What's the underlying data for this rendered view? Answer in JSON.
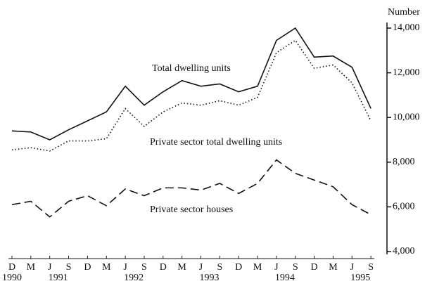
{
  "chart_data": {
    "type": "line",
    "y_axis_label": "Number",
    "categories": [
      "D",
      "M",
      "J",
      "S",
      "D",
      "M",
      "J",
      "S",
      "D",
      "M",
      "J",
      "S",
      "D",
      "M",
      "J",
      "S",
      "D",
      "M",
      "J",
      "S"
    ],
    "year_labels": [
      "1990",
      null,
      "1991",
      null,
      null,
      null,
      "1992",
      null,
      null,
      null,
      "1993",
      null,
      null,
      null,
      "1994",
      null,
      null,
      null,
      "1995",
      null
    ],
    "ylim": [
      4000,
      14000
    ],
    "yticks": [
      {
        "value": 4000,
        "label": "4,000"
      },
      {
        "value": 6000,
        "label": "6,000"
      },
      {
        "value": 8000,
        "label": "8,000"
      },
      {
        "value": 10000,
        "label": "10,000"
      },
      {
        "value": 12000,
        "label": "12,000"
      },
      {
        "value": 14000,
        "label": "14,000"
      }
    ],
    "series": [
      {
        "name": "Total dwelling units",
        "color": "#111111",
        "style": "solid",
        "values": [
          9400,
          9350,
          9000,
          9450,
          9850,
          10250,
          11400,
          10550,
          11150,
          11650,
          11400,
          11500,
          11150,
          11400,
          13450,
          14000,
          12700,
          12750,
          12250,
          10400
        ]
      },
      {
        "name": "Private sector total dwelling units",
        "color": "#111111",
        "style": "dotted",
        "values": [
          8550,
          8650,
          8500,
          8950,
          8950,
          9050,
          10400,
          9600,
          10250,
          10650,
          10550,
          10750,
          10550,
          10900,
          12900,
          13450,
          12200,
          12350,
          11550,
          9850
        ]
      },
      {
        "name": "Private sector houses",
        "color": "#111111",
        "style": "dashed",
        "values": [
          6100,
          6250,
          5550,
          6250,
          6500,
          6050,
          6800,
          6500,
          6850,
          6850,
          6750,
          7050,
          6600,
          7050,
          8100,
          7500,
          7200,
          6900,
          6100,
          5650
        ]
      }
    ]
  }
}
